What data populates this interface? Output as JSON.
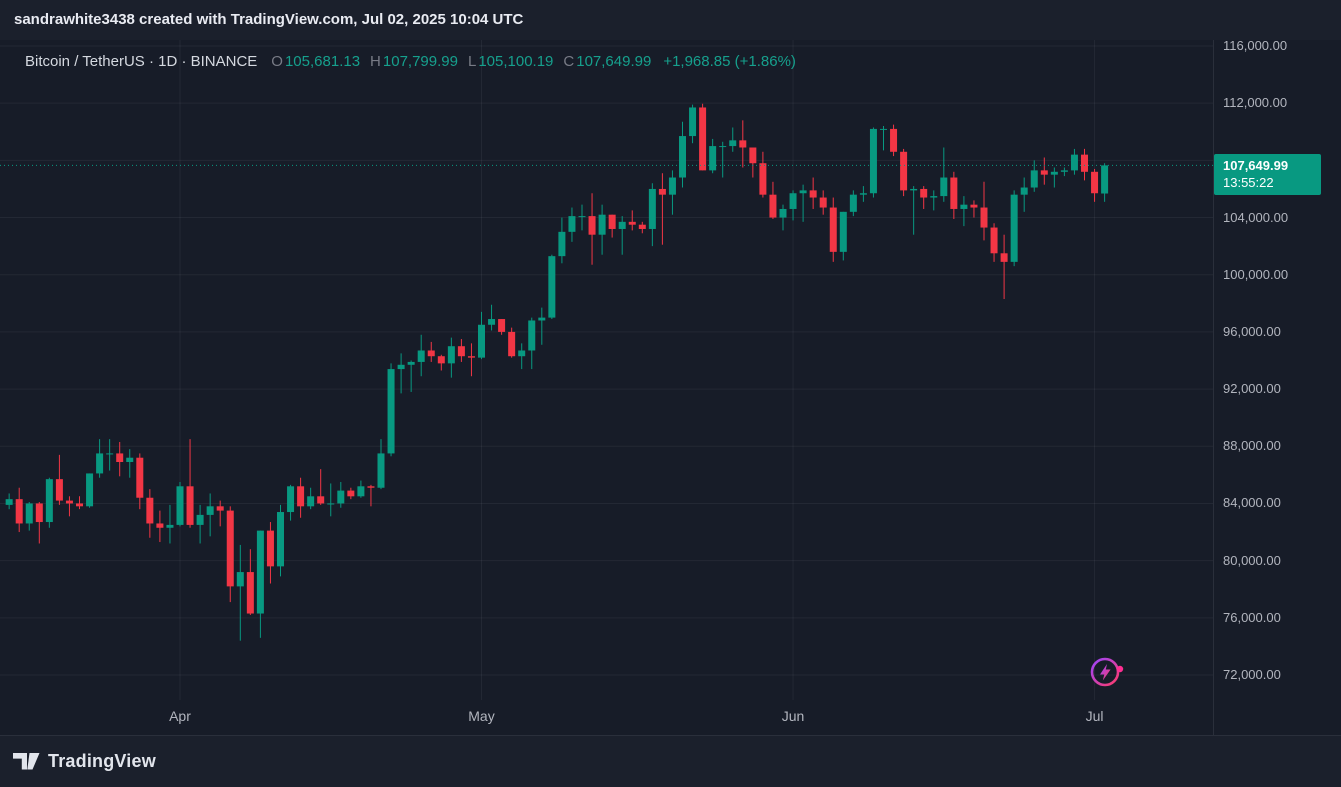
{
  "topbar": {
    "attribution": "sandrawhite3438 created with TradingView.com, Jul 02, 2025 10:04 UTC"
  },
  "legend": {
    "symbol_title": "Bitcoin / TetherUS · 1D · BINANCE",
    "items": [
      {
        "label": "O",
        "value": "105,681.13"
      },
      {
        "label": "H",
        "value": "107,799.99"
      },
      {
        "label": "L",
        "value": "105,100.19"
      },
      {
        "label": "C",
        "value": "107,649.99"
      }
    ],
    "change": "+1,968.85 (+1.86%)"
  },
  "price_scale": {
    "labels": [
      {
        "price": 116000,
        "text": "116,000.00"
      },
      {
        "price": 112000,
        "text": "112,000.00"
      },
      {
        "price": 104000,
        "text": "104,000.00"
      },
      {
        "price": 100000,
        "text": "100,000.00"
      },
      {
        "price": 96000,
        "text": "96,000.00"
      },
      {
        "price": 92000,
        "text": "92,000.00"
      },
      {
        "price": 88000,
        "text": "88,000.00"
      },
      {
        "price": 84000,
        "text": "84,000.00"
      },
      {
        "price": 80000,
        "text": "80,000.00"
      },
      {
        "price": 76000,
        "text": "76,000.00"
      },
      {
        "price": 72000,
        "text": "72,000.00"
      }
    ],
    "badge": {
      "price_text": "107,649.99",
      "countdown": "13:55:22"
    }
  },
  "footer": {
    "brand": "TradingView"
  },
  "colors": {
    "up": "#089981",
    "down": "#f23645",
    "badge_bg": "#089981",
    "axis_text": "#b2b5be",
    "grid": "rgba(240,243,250,0.06)",
    "background": "#171c28",
    "panel": "#1b202c",
    "border": "#2a2f3b",
    "accent_purple": "#9b45ff",
    "accent_pink": "#ff3b69"
  },
  "chart_data": {
    "type": "candlestick",
    "title": "Bitcoin / TetherUS",
    "interval": "1D",
    "exchange": "BINANCE",
    "ohlc": {
      "open": 105681.13,
      "high": 107799.99,
      "low": 105100.19,
      "close": 107649.99,
      "change": 1968.85,
      "change_pct": 1.86
    },
    "last_price": 107649.99,
    "countdown": "13:55:22",
    "y_axis": {
      "min": 72000,
      "max": 116000,
      "tick_step": 4000,
      "grid_prices": [
        116000,
        112000,
        108000,
        104000,
        100000,
        96000,
        92000,
        88000,
        84000,
        80000,
        76000,
        72000
      ]
    },
    "x_axis": {
      "labels": [
        {
          "label": "Apr",
          "candle_index": 17
        },
        {
          "label": "May",
          "candle_index": 47
        },
        {
          "label": "Jun",
          "candle_index": 78
        },
        {
          "label": "Jul",
          "candle_index": 108
        }
      ]
    },
    "candles": [
      [
        83900,
        84700,
        83600,
        84300
      ],
      [
        84300,
        85100,
        82000,
        82600
      ],
      [
        82600,
        84100,
        82100,
        84000
      ],
      [
        84000,
        84100,
        81200,
        82700
      ],
      [
        82700,
        85800,
        82300,
        85700
      ],
      [
        85700,
        87400,
        83900,
        84200
      ],
      [
        84200,
        84500,
        83100,
        84000
      ],
      [
        84000,
        84500,
        83600,
        83800
      ],
      [
        83800,
        86100,
        83700,
        86100
      ],
      [
        86100,
        88500,
        85800,
        87500
      ],
      [
        87500,
        88500,
        86300,
        87500
      ],
      [
        87500,
        88300,
        85900,
        86900
      ],
      [
        86900,
        87800,
        85800,
        87200
      ],
      [
        87200,
        87500,
        83600,
        84400
      ],
      [
        84400,
        85000,
        81600,
        82600
      ],
      [
        82600,
        83500,
        81300,
        82300
      ],
      [
        82300,
        83900,
        81200,
        82500
      ],
      [
        82500,
        85500,
        82400,
        85200
      ],
      [
        85200,
        88500,
        82300,
        82500
      ],
      [
        82500,
        83900,
        81200,
        83200
      ],
      [
        83200,
        84700,
        81700,
        83800
      ],
      [
        83800,
        84200,
        82400,
        83500
      ],
      [
        83500,
        83800,
        77100,
        78200
      ],
      [
        78200,
        81100,
        74400,
        79200
      ],
      [
        79200,
        80800,
        76200,
        76300
      ],
      [
        76300,
        82100,
        74600,
        82100
      ],
      [
        82100,
        82700,
        78400,
        79600
      ],
      [
        79600,
        83900,
        78900,
        83400
      ],
      [
        83400,
        85300,
        82800,
        85200
      ],
      [
        85200,
        85800,
        83000,
        83800
      ],
      [
        83800,
        85100,
        83600,
        84500
      ],
      [
        84500,
        86400,
        83900,
        84000
      ],
      [
        84000,
        85400,
        83100,
        84000
      ],
      [
        84000,
        85500,
        83700,
        84900
      ],
      [
        84900,
        85100,
        84300,
        84500
      ],
      [
        84500,
        85600,
        84400,
        85200
      ],
      [
        85200,
        85300,
        83800,
        85100
      ],
      [
        85100,
        88500,
        85000,
        87500
      ],
      [
        87500,
        93800,
        87300,
        93400
      ],
      [
        93400,
        94500,
        91700,
        93700
      ],
      [
        93700,
        94000,
        91800,
        93900
      ],
      [
        93900,
        95800,
        92900,
        94700
      ],
      [
        94700,
        95300,
        93900,
        94300
      ],
      [
        94300,
        94400,
        93300,
        93800
      ],
      [
        93800,
        95600,
        92800,
        95000
      ],
      [
        95000,
        95500,
        93900,
        94300
      ],
      [
        94300,
        95200,
        92900,
        94200
      ],
      [
        94200,
        97400,
        94100,
        96500
      ],
      [
        96500,
        97900,
        96100,
        96900
      ],
      [
        96900,
        96900,
        95800,
        96000
      ],
      [
        96000,
        96300,
        94200,
        94300
      ],
      [
        94300,
        95200,
        93400,
        94700
      ],
      [
        94700,
        97000,
        93400,
        96800
      ],
      [
        96800,
        97700,
        95100,
        97000
      ],
      [
        97000,
        101400,
        96900,
        101300
      ],
      [
        101300,
        104000,
        100800,
        103000
      ],
      [
        103000,
        104700,
        102300,
        104100
      ],
      [
        104100,
        104900,
        103100,
        104100
      ],
      [
        104100,
        105700,
        100700,
        102800
      ],
      [
        102800,
        104900,
        101400,
        104200
      ],
      [
        104200,
        104200,
        102600,
        103200
      ],
      [
        103200,
        104100,
        101400,
        103700
      ],
      [
        103700,
        104500,
        103100,
        103500
      ],
      [
        103500,
        103700,
        102900,
        103200
      ],
      [
        103200,
        106400,
        102000,
        106000
      ],
      [
        106000,
        107100,
        102100,
        105600
      ],
      [
        105600,
        107300,
        104200,
        106800
      ],
      [
        106800,
        110700,
        106100,
        109700
      ],
      [
        109700,
        111900,
        109200,
        111700
      ],
      [
        111700,
        111960,
        107300,
        107300
      ],
      [
        107300,
        109500,
        107100,
        109000
      ],
      [
        109000,
        109300,
        106800,
        109000
      ],
      [
        109000,
        110300,
        108600,
        109400
      ],
      [
        109400,
        110800,
        107500,
        108900
      ],
      [
        108900,
        108900,
        106800,
        107800
      ],
      [
        107800,
        108600,
        105400,
        105600
      ],
      [
        105600,
        106500,
        103900,
        104000
      ],
      [
        104000,
        104900,
        103100,
        104600
      ],
      [
        104600,
        105900,
        103800,
        105700
      ],
      [
        105700,
        106300,
        103700,
        105900
      ],
      [
        105900,
        106800,
        104600,
        105400
      ],
      [
        105400,
        105900,
        104200,
        104700
      ],
      [
        104700,
        105400,
        100900,
        101600
      ],
      [
        101600,
        104400,
        101000,
        104400
      ],
      [
        104400,
        105900,
        104100,
        105600
      ],
      [
        105600,
        106200,
        105100,
        105700
      ],
      [
        105700,
        110300,
        105400,
        110200
      ],
      [
        110200,
        110400,
        108700,
        110200
      ],
      [
        110200,
        110500,
        108300,
        108600
      ],
      [
        108600,
        108800,
        105500,
        105900
      ],
      [
        105900,
        106200,
        102800,
        106000
      ],
      [
        106000,
        106200,
        104600,
        105400
      ],
      [
        105400,
        105900,
        104500,
        105500
      ],
      [
        105500,
        108900,
        105100,
        106800
      ],
      [
        106800,
        107200,
        103900,
        104600
      ],
      [
        104600,
        105500,
        103400,
        104900
      ],
      [
        104900,
        105200,
        104000,
        104700
      ],
      [
        104700,
        106500,
        102400,
        103300
      ],
      [
        103300,
        103600,
        100900,
        101500
      ],
      [
        101500,
        102800,
        98300,
        100900
      ],
      [
        100900,
        105900,
        100600,
        105600
      ],
      [
        105600,
        106800,
        104400,
        106100
      ],
      [
        106100,
        108000,
        105800,
        107300
      ],
      [
        107300,
        108200,
        106300,
        107000
      ],
      [
        107000,
        107500,
        106100,
        107200
      ],
      [
        107200,
        107500,
        106900,
        107300
      ],
      [
        107300,
        108800,
        107000,
        108400
      ],
      [
        108400,
        108800,
        106600,
        107200
      ],
      [
        107200,
        107400,
        105100,
        105700
      ],
      [
        105681.13,
        107799.99,
        105100.19,
        107649.99
      ]
    ]
  }
}
